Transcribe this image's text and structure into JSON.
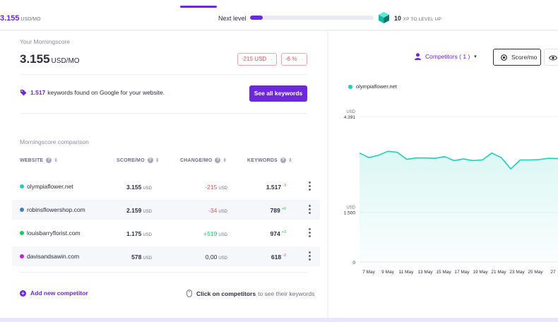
{
  "topbar": {
    "score_value": "3.155",
    "score_unit": "USD/MO",
    "next_level_label": "Next level",
    "progress_fraction": 0.1,
    "xp_value": "10",
    "xp_label": "XP TO LEVEL UP"
  },
  "summary": {
    "label": "Your Morningscore",
    "value": "3.155",
    "unit": "USD/MO",
    "change_usd": "-215 USD",
    "change_pct": "-6 %"
  },
  "keywords_info": {
    "count": "1.517",
    "text": "keywords found on Google for your website.",
    "button_label": "See all keywords"
  },
  "comparison": {
    "title": "Morningscore comparison",
    "headers": {
      "website": "WEBSITE",
      "score": "SCORE/MO",
      "change": "CHANGE/MO",
      "keywords": "KEYWORDS"
    },
    "rows": [
      {
        "site": "olympiaflower.net",
        "color": "#1fcfb9",
        "score": "3.155",
        "score_unit": "USD",
        "change": "-215",
        "change_unit": "USD",
        "change_color": "#e0525b",
        "keywords": "1.517",
        "kw_delta": "-3",
        "kw_delta_color": "#e0525b"
      },
      {
        "site": "robinsflowershop.com",
        "color": "#3b82c4",
        "score": "2.159",
        "score_unit": "USD",
        "change": "-34",
        "change_unit": "USD",
        "change_color": "#e0525b",
        "keywords": "789",
        "kw_delta": "+6",
        "kw_delta_color": "#22c55e"
      },
      {
        "site": "louisbarryflorist.com",
        "color": "#22c55e",
        "score": "1.175",
        "score_unit": "USD",
        "change": "+519",
        "change_unit": "USD",
        "change_color": "#22c55e",
        "keywords": "974",
        "kw_delta": "+3",
        "kw_delta_color": "#22c55e"
      },
      {
        "site": "davisandsawin.com",
        "color": "#c026d3",
        "score": "578",
        "score_unit": "USD",
        "change": "0,00",
        "change_unit": "USD",
        "change_color": "#2b2d42",
        "keywords": "618",
        "kw_delta": "-2",
        "kw_delta_color": "#e0525b"
      }
    ],
    "add_label": "Add new competitor",
    "hint_bold": "Click on competitors",
    "hint_text": "to see their keywords"
  },
  "chart_panel": {
    "competitors_label": "Competitors ( 1 )",
    "score_button": "Score/mo",
    "legend_site": "olympiaflower.net",
    "legend_color": "#1fcfb9",
    "y_unit": "USD"
  },
  "chart_data": {
    "type": "area",
    "y_ticks": [
      "4.391",
      "1.500",
      "0"
    ],
    "y_tick_values": [
      4391,
      1500,
      0
    ],
    "x_ticks": [
      "7 May",
      "9 May",
      "11 May",
      "13 May",
      "15 May",
      "17 May",
      "19 May",
      "21 May",
      "23 May",
      "25 May",
      "27"
    ],
    "ylim": [
      0,
      4391
    ],
    "series": [
      {
        "name": "olympiaflower.net",
        "values": [
          3290,
          3150,
          3220,
          3340,
          3310,
          3100,
          3140,
          3140,
          3130,
          3180,
          3060,
          3110,
          3060,
          3080,
          3290,
          3150,
          2810,
          3080,
          3080,
          3090,
          3130,
          3120
        ]
      }
    ]
  }
}
